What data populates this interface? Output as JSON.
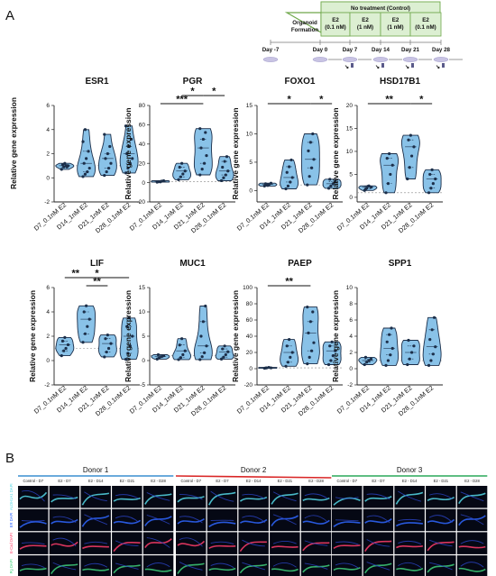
{
  "panel_a_label": "A",
  "panel_b_label": "B",
  "timeline": {
    "no_treatment_label": "No treatment (Control)",
    "organoid_label_1": "Organoid",
    "organoid_label_2": "Formation",
    "boxes": [
      {
        "l1": "E2",
        "l2": "(0.1 nM)"
      },
      {
        "l1": "E2",
        "l2": "(1 nM)"
      },
      {
        "l1": "E2",
        "l2": "(1 nM)"
      },
      {
        "l1": "E2",
        "l2": "(0.1 nM)"
      }
    ],
    "days": [
      "Day -7",
      "Day 0",
      "Day 7",
      "Day 14",
      "Day 21",
      "Day 28"
    ],
    "colors": {
      "green": "#6fa84b",
      "box_fill": "#dcefd2",
      "arrow": "#555555",
      "dish": "#c8c3e3"
    }
  },
  "colors": {
    "violin_fill": "#89c2e8",
    "violin_stroke": "#1c2f4a",
    "point": "#1c2f4a",
    "dashed": "#888888",
    "donor1_bar": "#3a8fd0",
    "donor2_bar": "#d92626",
    "donor3_bar": "#2aa85a"
  },
  "ylabel": "Relative gene expression",
  "categories": [
    "D7_0.1nM E2",
    "D14_1nM E2",
    "D21_1nM E2",
    "D28_0.1nM E2"
  ],
  "chart_data": [
    {
      "type": "violin",
      "title": "ESR1",
      "ylim": [
        -2,
        6
      ],
      "yticks": [
        -2,
        0,
        2,
        4,
        6
      ],
      "dashed_y": 1,
      "series": [
        {
          "values": [
            0.7,
            0.9,
            1.0,
            1.0,
            1.1,
            1.2,
            0.9
          ]
        },
        {
          "values": [
            0.1,
            0.3,
            0.5,
            0.8,
            1.2,
            1.6,
            2.2,
            3.0,
            4.0
          ]
        },
        {
          "values": [
            0.2,
            0.5,
            0.8,
            1.2,
            1.6,
            2.0,
            2.6,
            3.6
          ]
        },
        {
          "values": [
            0.4,
            0.8,
            1.2,
            1.6,
            2.0,
            2.6,
            3.2,
            4.3
          ]
        }
      ],
      "sig": []
    },
    {
      "type": "violin",
      "title": "PGR",
      "ylim": [
        -20,
        80
      ],
      "yticks": [
        -20,
        0,
        20,
        40,
        60,
        80
      ],
      "dashed_y": 1,
      "series": [
        {
          "values": [
            0.5,
            1,
            1.5,
            2,
            1,
            0.8
          ]
        },
        {
          "values": [
            3,
            6,
            9,
            12,
            16,
            20
          ]
        },
        {
          "values": [
            8,
            14,
            20,
            28,
            36,
            45,
            52,
            56
          ]
        },
        {
          "values": [
            2,
            5,
            8,
            12,
            16,
            22,
            27
          ]
        }
      ],
      "sig": [
        {
          "from": 0,
          "to": 2,
          "level": 0,
          "label": "***"
        },
        {
          "from": 1,
          "to": 2,
          "level": 1,
          "label": "*"
        },
        {
          "from": 2,
          "to": 3,
          "level": 1,
          "label": "*"
        }
      ]
    },
    {
      "type": "violin",
      "title": "FOXO1",
      "ylim": [
        -2,
        15
      ],
      "yticks": [
        0,
        5,
        10,
        15
      ],
      "dashed_y": 1,
      "series": [
        {
          "values": [
            0.8,
            1.0,
            1.1,
            1.3,
            1.2,
            0.9
          ]
        },
        {
          "values": [
            0.3,
            0.8,
            1.5,
            2.3,
            3.2,
            4.2,
            5.4
          ]
        },
        {
          "values": [
            1,
            2.5,
            4,
            5.5,
            7,
            8.5,
            10
          ]
        },
        {
          "values": [
            0.4,
            0.8,
            1.2,
            1.6,
            2.0
          ]
        }
      ],
      "sig": [
        {
          "from": 0,
          "to": 2,
          "level": 0,
          "label": "*"
        },
        {
          "from": 2,
          "to": 3,
          "level": 0,
          "label": "*"
        }
      ]
    },
    {
      "type": "violin",
      "title": "HSD17B1",
      "ylim": [
        -1,
        20
      ],
      "yticks": [
        0,
        5,
        10,
        15,
        20
      ],
      "dashed_y": 1,
      "series": [
        {
          "values": [
            1.5,
            2,
            2.5,
            2.2,
            1.8,
            2.4
          ]
        },
        {
          "values": [
            1,
            3,
            5,
            7,
            8.5,
            9.5
          ]
        },
        {
          "values": [
            4,
            6.5,
            9,
            11,
            12.5,
            13.5
          ]
        },
        {
          "values": [
            1,
            2,
            3,
            4,
            5,
            6
          ]
        }
      ],
      "sig": [
        {
          "from": 0,
          "to": 2,
          "level": 0,
          "label": "**"
        },
        {
          "from": 2,
          "to": 3,
          "level": 0,
          "label": "*"
        }
      ]
    },
    {
      "type": "violin",
      "title": "LIF",
      "ylim": [
        -2,
        6
      ],
      "yticks": [
        -2,
        0,
        2,
        4,
        6
      ],
      "dashed_y": 1,
      "series": [
        {
          "values": [
            0.4,
            0.8,
            1.0,
            1.3,
            1.6,
            1.9
          ]
        },
        {
          "values": [
            1.5,
            2.2,
            2.8,
            3.4,
            4.0,
            4.5
          ]
        },
        {
          "values": [
            0.3,
            0.7,
            1.0,
            1.4,
            1.8,
            2.1
          ]
        },
        {
          "values": [
            0.1,
            0.6,
            1.2,
            2.0,
            2.8,
            3.5
          ]
        }
      ],
      "sig": [
        {
          "from": 0,
          "to": 1,
          "level": 1,
          "label": "**"
        },
        {
          "from": 0,
          "to": 3,
          "level": 1,
          "label": "*"
        },
        {
          "from": 1,
          "to": 2,
          "level": 0,
          "label": "**"
        }
      ]
    },
    {
      "type": "violin",
      "title": "MUC1",
      "ylim": [
        -5,
        15
      ],
      "yticks": [
        -5,
        0,
        5,
        10,
        15
      ],
      "dashed_y": 1,
      "series": [
        {
          "values": [
            0.3,
            0.6,
            0.8,
            1.0,
            1.2
          ]
        },
        {
          "values": [
            0.2,
            0.6,
            1.2,
            2.0,
            3.2,
            4.5
          ]
        },
        {
          "values": [
            0.2,
            0.8,
            1.6,
            3.0,
            5.0,
            8.0,
            11.2
          ]
        },
        {
          "values": [
            0.3,
            0.7,
            1.2,
            1.8,
            2.4,
            3.0
          ]
        }
      ],
      "sig": []
    },
    {
      "type": "violin",
      "title": "PAEP",
      "ylim": [
        -20,
        100
      ],
      "yticks": [
        -20,
        0,
        20,
        40,
        60,
        80,
        100
      ],
      "dashed_y": 1,
      "series": [
        {
          "values": [
            0.5,
            1,
            1.5,
            1,
            0.8
          ]
        },
        {
          "values": [
            3,
            8,
            14,
            20,
            28,
            36
          ]
        },
        {
          "values": [
            6,
            14,
            22,
            32,
            44,
            58,
            70,
            76
          ]
        },
        {
          "values": [
            5,
            10,
            16,
            22,
            28,
            33
          ]
        }
      ],
      "sig": [
        {
          "from": 0,
          "to": 2,
          "level": 0,
          "label": "**"
        }
      ]
    },
    {
      "type": "violin",
      "title": "SPP1",
      "ylim": [
        -2,
        10
      ],
      "yticks": [
        -2,
        0,
        2,
        4,
        6,
        8,
        10
      ],
      "dashed_y": 1,
      "series": [
        {
          "values": [
            0.5,
            0.8,
            1.0,
            1.2,
            1.4
          ]
        },
        {
          "values": [
            0.4,
            1.0,
            1.7,
            2.5,
            3.3,
            4.2,
            5.0
          ]
        },
        {
          "values": [
            0.5,
            1.2,
            2.0,
            2.8,
            3.5
          ]
        },
        {
          "values": [
            0.4,
            1.0,
            1.8,
            2.7,
            3.6,
            4.8,
            6.3
          ]
        }
      ],
      "sig": []
    }
  ],
  "panel_b": {
    "donors": [
      "Donor 1",
      "Donor 2",
      "Donor 3"
    ],
    "columns": [
      "Control - D7",
      "E2 - D7",
      "E2 - D14",
      "E2 - D21",
      "E2 - D28"
    ],
    "rows": [
      {
        "label": "ALDH1A1 DAPI",
        "color": "#55d8e6"
      },
      {
        "label": "ER DAPI",
        "color": "#2f66ff"
      },
      {
        "label": "E-Cad DAPI",
        "color": "#ff3d6a"
      },
      {
        "label": "Pg DAPI",
        "color": "#3fd07a"
      }
    ]
  }
}
